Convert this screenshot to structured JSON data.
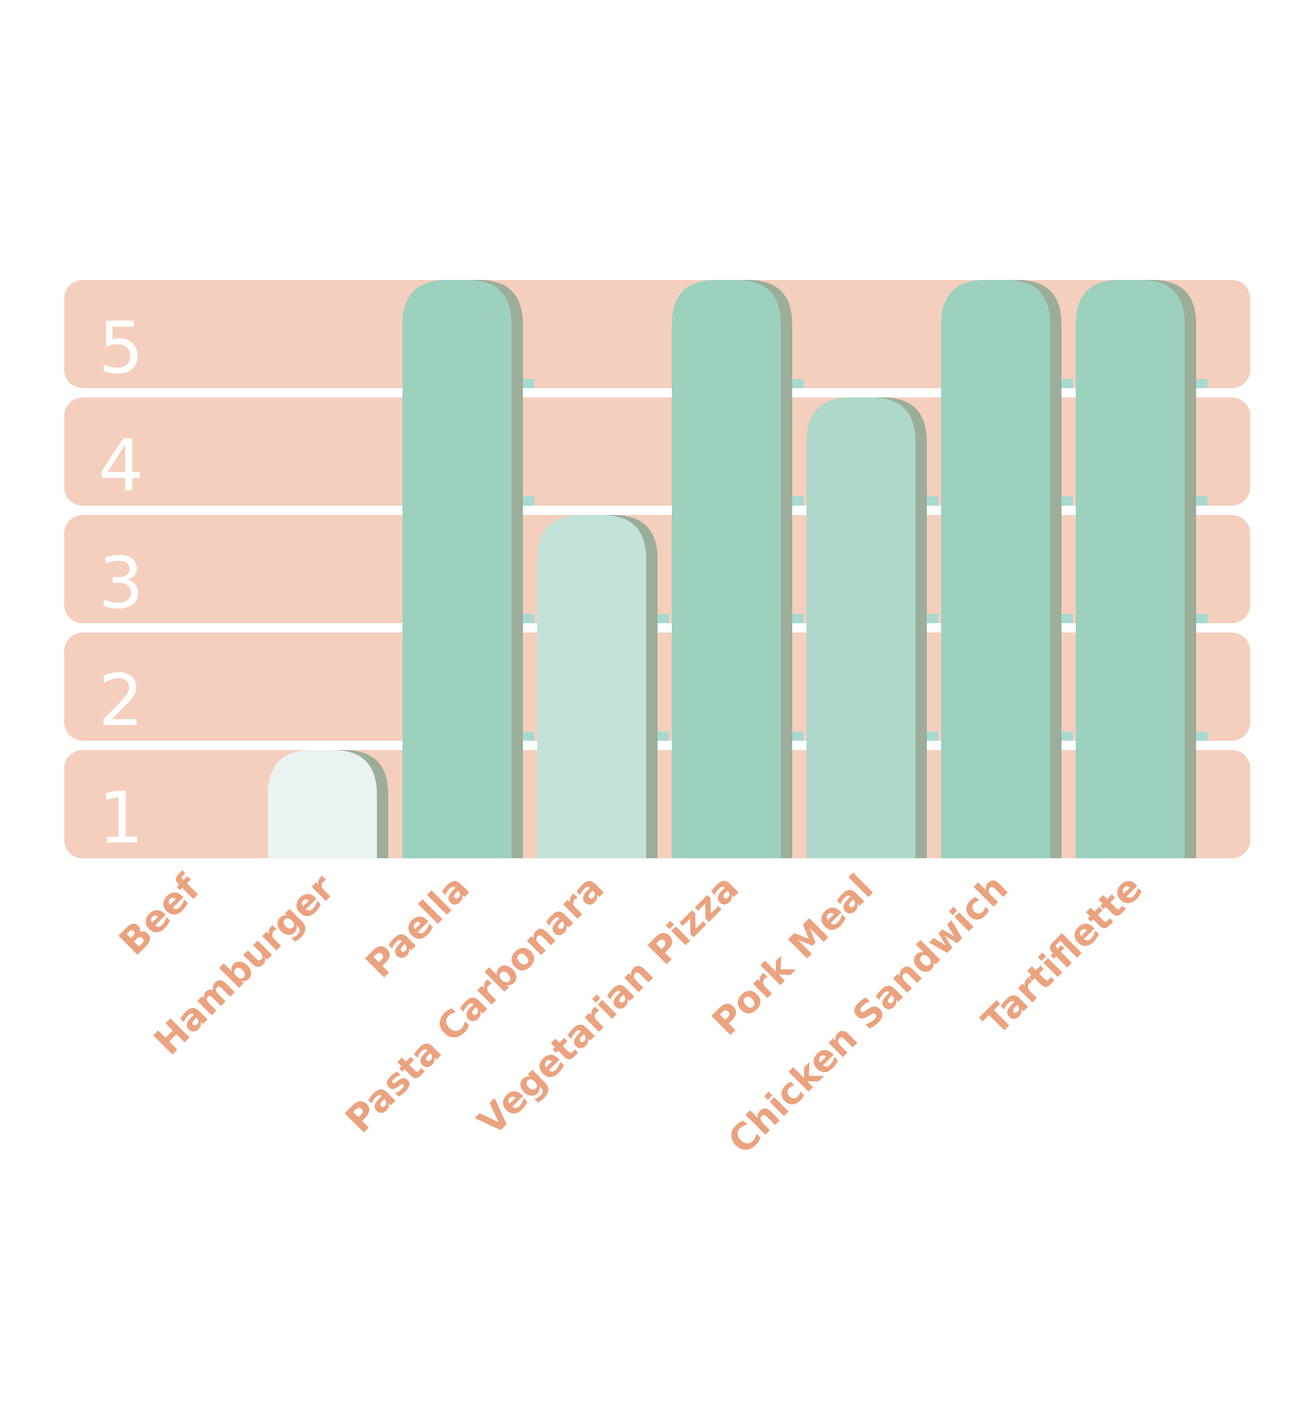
{
  "chart_data": {
    "type": "bar",
    "title": "",
    "xlabel": "",
    "ylabel": "",
    "categories": [
      "Beef",
      "Hamburger",
      "Paella",
      "Pasta Carbonara",
      "Vegetarian Pizza",
      "Pork Meal",
      "Chicken Sandwich",
      "Tartiflette"
    ],
    "values": [
      0,
      1,
      5,
      3,
      5,
      4,
      5,
      5
    ],
    "y_ticks": [
      "1",
      "2",
      "3",
      "4",
      "5"
    ],
    "ylim": [
      0,
      5
    ],
    "legend": "none",
    "grid": true,
    "colors": {
      "band": "#f5cfbd",
      "band_gap": "#ffffff",
      "gap_highlight": "#a8d9cf",
      "tick_label": "#ffffff",
      "category_label": "#eba27f",
      "bar_shadow": "#9cae9a",
      "bar_by_value": {
        "1": "#eaf3ef",
        "3": "#c3e2d8",
        "4": "#aed8ca",
        "5": "#9cd1be"
      }
    }
  }
}
